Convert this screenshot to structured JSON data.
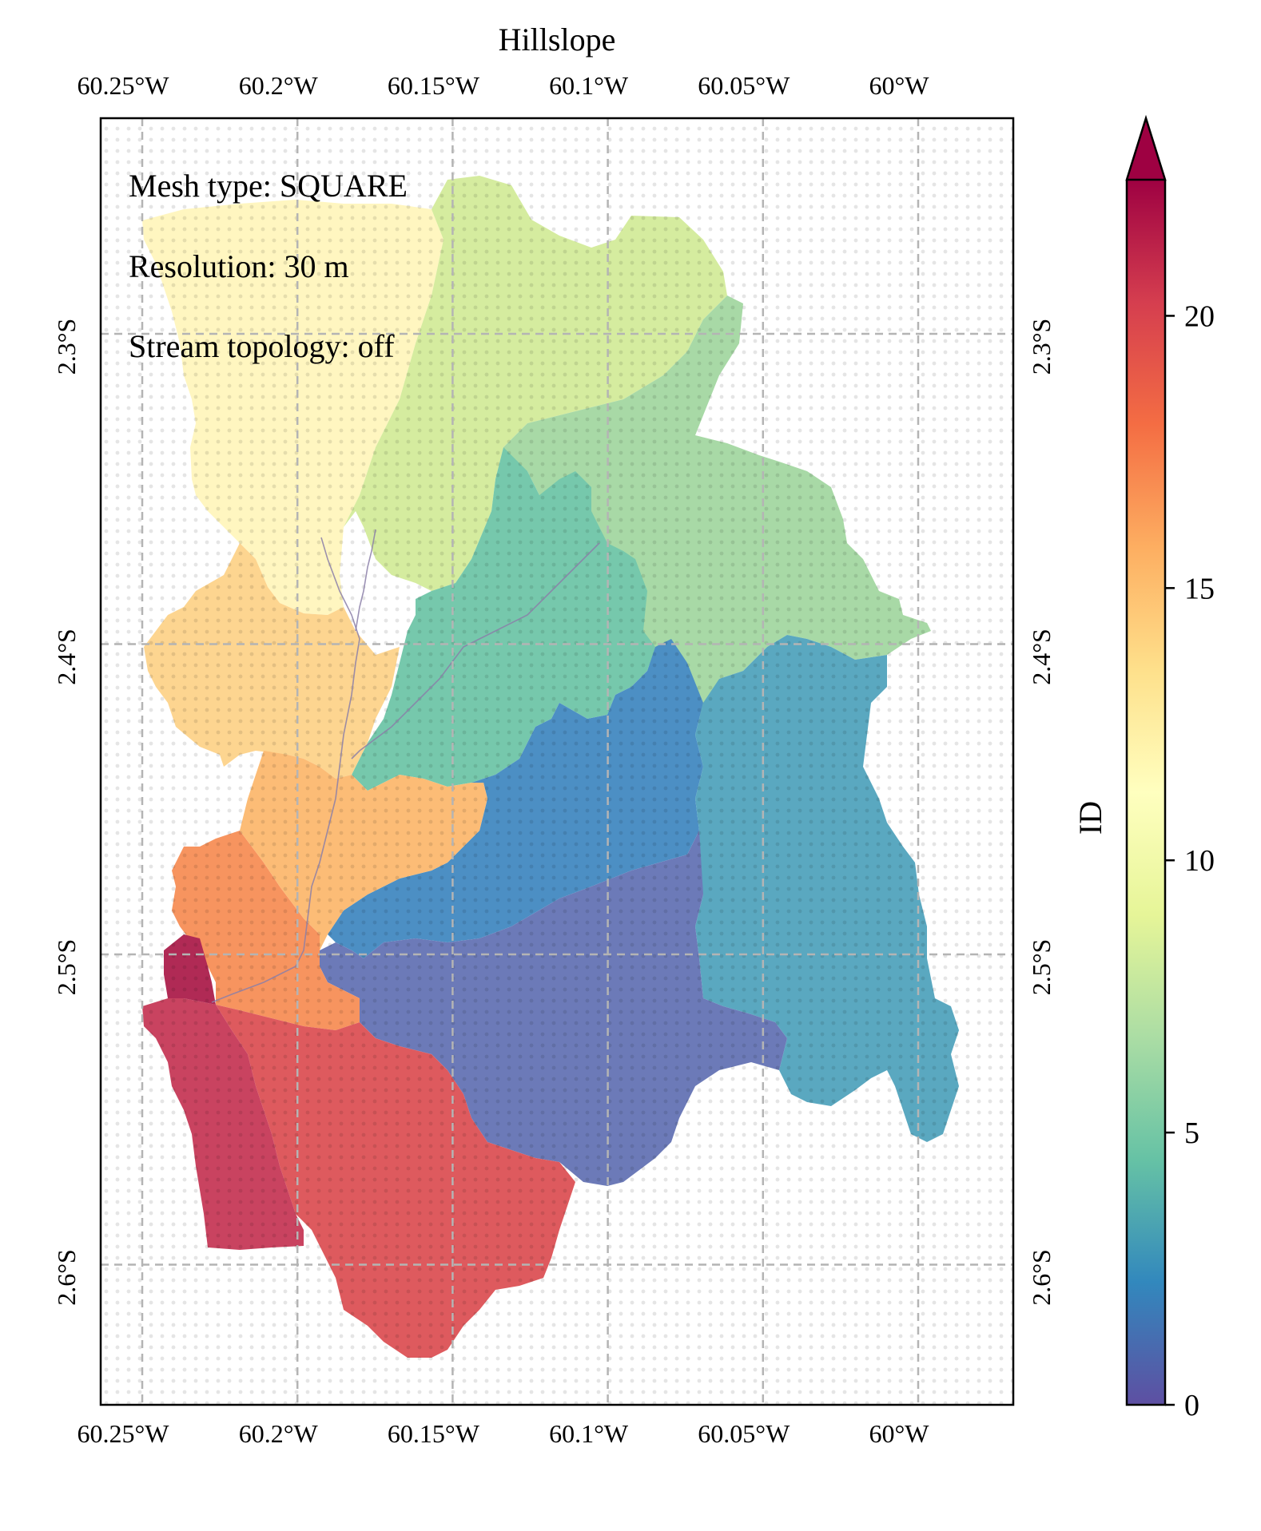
{
  "title": "Hillslope",
  "annotations": [
    "Mesh type: SQUARE",
    "Resolution: 30 m",
    "Stream topology: off"
  ],
  "lon_ticks": [
    "60.25°W",
    "60.2°W",
    "60.15°W",
    "60.1°W",
    "60.05°W",
    "60°W"
  ],
  "lon_values": [
    -60.25,
    -60.2,
    -60.15,
    -60.1,
    -60.05,
    -60.0
  ],
  "lat_ticks": [
    "2.3°S",
    "2.4°S",
    "2.5°S",
    "2.6°S"
  ],
  "lat_values": [
    -2.3,
    -2.4,
    -2.5,
    -2.6
  ],
  "colorbar": {
    "label": "ID",
    "ticks": [
      "0",
      "5",
      "10",
      "15",
      "20"
    ],
    "tick_values": [
      0,
      5,
      10,
      15,
      20
    ],
    "vmin": 0,
    "vmax": 22.5,
    "extend": "max",
    "colormap": "Spectral_r",
    "stops": [
      "#5e4fa2",
      "#3288bd",
      "#66c2a5",
      "#abdda4",
      "#e6f598",
      "#ffffbf",
      "#fee08b",
      "#fdae61",
      "#f46d43",
      "#d53e4f",
      "#9e0142"
    ]
  },
  "colors": {
    "region_1": "#6c7ab8",
    "region_2": "#4c8fc4",
    "region_3": "#5aa8c0",
    "region_5": "#76c8ac",
    "region_7": "#a8d9a6",
    "region_9": "#d5ec9f",
    "region_11": "#fff6c0",
    "region_14": "#fdd590",
    "region_16": "#fcbc76",
    "region_18": "#f7945f",
    "region_20": "#de5a5e",
    "region_21": "#c94360",
    "region_22": "#b02a55",
    "stream": "#8b7fa8",
    "grid": "#b4b4b4"
  }
}
